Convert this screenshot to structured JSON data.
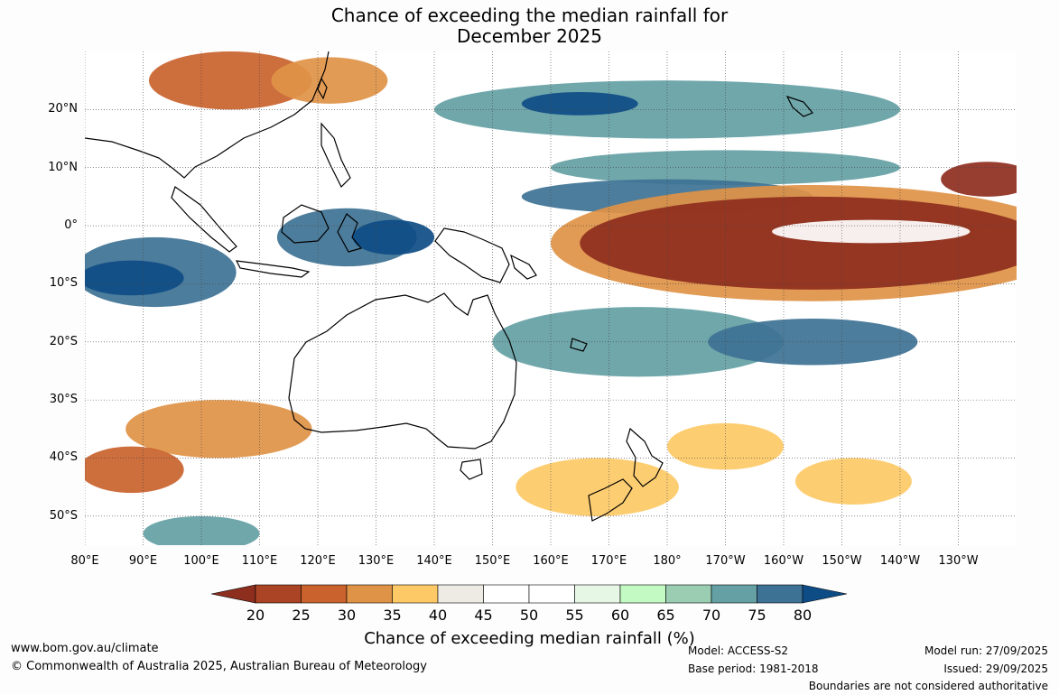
{
  "title": {
    "line1": "Chance of exceeding the median rainfall for",
    "line2": "December 2025"
  },
  "map": {
    "lon_range": [
      80,
      240
    ],
    "lat_range": [
      -55,
      30
    ],
    "lat_labels": [
      {
        "lat": 20,
        "text": "20°N"
      },
      {
        "lat": 10,
        "text": "10°N"
      },
      {
        "lat": 0,
        "text": "0°"
      },
      {
        "lat": -10,
        "text": "10°S"
      },
      {
        "lat": -20,
        "text": "20°S"
      },
      {
        "lat": -30,
        "text": "30°S"
      },
      {
        "lat": -40,
        "text": "40°S"
      },
      {
        "lat": -50,
        "text": "50°S"
      }
    ],
    "lon_labels": [
      {
        "lon": 80,
        "text": "80°E"
      },
      {
        "lon": 90,
        "text": "90°E"
      },
      {
        "lon": 100,
        "text": "100°E"
      },
      {
        "lon": 110,
        "text": "110°E"
      },
      {
        "lon": 120,
        "text": "120°E"
      },
      {
        "lon": 130,
        "text": "130°E"
      },
      {
        "lon": 140,
        "text": "140°E"
      },
      {
        "lon": 150,
        "text": "150°E"
      },
      {
        "lon": 160,
        "text": "160°E"
      },
      {
        "lon": 170,
        "text": "170°E"
      },
      {
        "lon": 180,
        "text": "180°"
      },
      {
        "lon": 190,
        "text": "170°W"
      },
      {
        "lon": 200,
        "text": "160°W"
      },
      {
        "lon": 210,
        "text": "150°W"
      },
      {
        "lon": 220,
        "text": "140°W"
      },
      {
        "lon": 230,
        "text": "130°W"
      }
    ],
    "regions": [
      {
        "name": "north-asia-dry",
        "lon": 105,
        "lat": 25,
        "rx": 14,
        "ry": 5,
        "level": 25
      },
      {
        "name": "north-asia-dry2",
        "lon": 122,
        "lat": 25,
        "rx": 10,
        "ry": 4,
        "level": 30
      },
      {
        "name": "subtropic-nw-wet",
        "lon": 180,
        "lat": 20,
        "rx": 40,
        "ry": 5,
        "level": 70
      },
      {
        "name": "subtropic-nw-wet-core",
        "lon": 165,
        "lat": 21,
        "rx": 10,
        "ry": 2,
        "level": 80
      },
      {
        "name": "band-10n-wet",
        "lon": 190,
        "lat": 10,
        "rx": 30,
        "ry": 3,
        "level": 70
      },
      {
        "name": "band-5n-wet",
        "lon": 180,
        "lat": 5,
        "rx": 25,
        "ry": 3,
        "level": 75
      },
      {
        "name": "maritime-wet",
        "lon": 125,
        "lat": -2,
        "rx": 12,
        "ry": 5,
        "level": 75
      },
      {
        "name": "maritime-core",
        "lon": 133,
        "lat": -2,
        "rx": 7,
        "ry": 3,
        "level": 80
      },
      {
        "name": "indian-wet",
        "lon": 92,
        "lat": -8,
        "rx": 14,
        "ry": 6,
        "level": 75
      },
      {
        "name": "indian-core",
        "lon": 88,
        "lat": -9,
        "rx": 9,
        "ry": 3,
        "level": 80
      },
      {
        "name": "spcz-wet",
        "lon": 175,
        "lat": -20,
        "rx": 25,
        "ry": 6,
        "level": 70
      },
      {
        "name": "spcz-east-wet",
        "lon": 205,
        "lat": -20,
        "rx": 18,
        "ry": 4,
        "level": 75
      },
      {
        "name": "eq-pacific-dry-outer",
        "lon": 205,
        "lat": -3,
        "rx": 45,
        "ry": 10,
        "level": 30
      },
      {
        "name": "eq-pacific-dry",
        "lon": 205,
        "lat": -3,
        "rx": 40,
        "ry": 8,
        "level": 20
      },
      {
        "name": "eq-pacific-hole",
        "lon": 215,
        "lat": -1,
        "rx": 17,
        "ry": 2,
        "level": 45
      },
      {
        "name": "se-pacific-dry",
        "lon": 190,
        "lat": -38,
        "rx": 10,
        "ry": 4,
        "level": 35
      },
      {
        "name": "nz-south-dry",
        "lon": 168,
        "lat": -45,
        "rx": 14,
        "ry": 5,
        "level": 35
      },
      {
        "name": "south-indian-dry",
        "lon": 103,
        "lat": -35,
        "rx": 16,
        "ry": 5,
        "level": 30
      },
      {
        "name": "sw-indian-dry",
        "lon": 88,
        "lat": -42,
        "rx": 9,
        "ry": 4,
        "level": 25
      },
      {
        "name": "ne-pacific-dry",
        "lon": 235,
        "lat": 8,
        "rx": 8,
        "ry": 3,
        "level": 20
      },
      {
        "name": "south-pacific-dry",
        "lon": 212,
        "lat": -44,
        "rx": 10,
        "ry": 4,
        "level": 35
      },
      {
        "name": "far-south-wet",
        "lon": 100,
        "lat": -53,
        "rx": 10,
        "ry": 3,
        "level": 70
      }
    ]
  },
  "colorbar": {
    "levels": [
      20,
      25,
      30,
      35,
      40,
      45,
      50,
      55,
      60,
      65,
      70,
      75,
      80
    ],
    "colors": [
      "#aa4424",
      "#c9622c",
      "#df9346",
      "#fdc966",
      "#eeebe5",
      "#ffffff",
      "#ffffff",
      "#e6f7e6",
      "#c3f9c3",
      "#9bcdb3",
      "#64a0a4",
      "#3e7294"
    ],
    "under_color": "#8e2e1e",
    "over_color": "#0e4c86",
    "label": "Chance of exceeding median rainfall (%)"
  },
  "footer": {
    "website": "www.bom.gov.au/climate",
    "copyright": "© Commonwealth of Australia 2025, Australian Bureau of Meteorology",
    "model": "Model: ACCESS-S2",
    "base_period": "Base period: 1981-2018",
    "model_run": "Model run: 27/09/2025",
    "issued": "Issued: 29/09/2025",
    "disclaimer": "Boundaries are not considered authoritative"
  }
}
